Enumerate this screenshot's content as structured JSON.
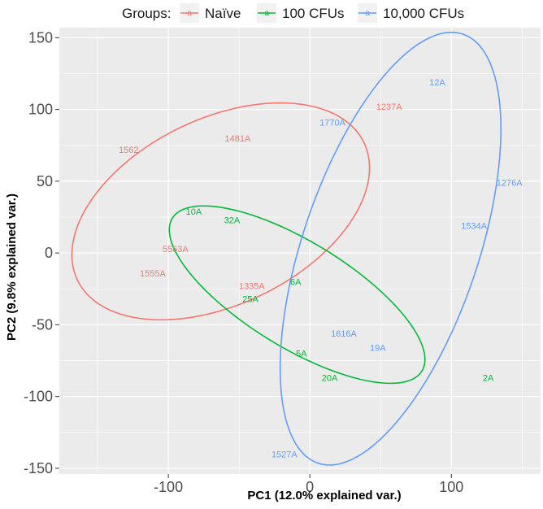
{
  "chart_data": {
    "type": "scatter",
    "title": "",
    "xlabel": "PC1 (12.0% explained var.)",
    "ylabel": "PC2 (9.8% explained var.)",
    "xlim": [
      -177,
      163
    ],
    "ylim": [
      -154,
      157
    ],
    "xticks": [
      -100,
      0,
      100
    ],
    "xtick_labels": [
      "-100",
      "0",
      "100"
    ],
    "yticks": [
      150,
      100,
      50,
      0,
      -50,
      -100,
      -150
    ],
    "ytick_labels": [
      "150",
      "100",
      "50",
      "0",
      "-50",
      "-100",
      "-150"
    ],
    "grid": true,
    "legend": {
      "title": "Groups:",
      "position": "top",
      "glyph": "a",
      "entries": [
        "Naïve",
        "100 CFUs",
        "10,000 CFUs"
      ]
    },
    "series": [
      {
        "name": "Naïve",
        "color": "#f8766d",
        "points": [
          {
            "label": "1562",
            "x": -128,
            "y": 72
          },
          {
            "label": "1481A",
            "x": -51,
            "y": 80
          },
          {
            "label": "1237A",
            "x": 56,
            "y": 102
          },
          {
            "label": "5563A",
            "x": -95,
            "y": 3
          },
          {
            "label": "1555A",
            "x": -111,
            "y": -14
          },
          {
            "label": "1335A",
            "x": -41,
            "y": -23
          }
        ],
        "ellipse": {
          "cx": -63,
          "cy": 29,
          "rx": 112,
          "ry": 65,
          "angle_deg": 25
        }
      },
      {
        "name": "100 CFUs",
        "color": "#00ba38",
        "points": [
          {
            "label": "10A",
            "x": -82,
            "y": 29
          },
          {
            "label": "32A",
            "x": -55,
            "y": 23
          },
          {
            "label": "6A",
            "x": -10,
            "y": -20
          },
          {
            "label": "25A",
            "x": -42,
            "y": -32
          },
          {
            "label": "5A",
            "x": -6,
            "y": -70
          },
          {
            "label": "20A",
            "x": 14,
            "y": -87
          },
          {
            "label": "2A",
            "x": 126,
            "y": -87
          }
        ],
        "ellipse": {
          "cx": -9,
          "cy": -29,
          "rx": 103,
          "ry": 37,
          "angle_deg": -31
        }
      },
      {
        "name": "10,000 CFUs",
        "color": "#619cff",
        "points": [
          {
            "label": "12A",
            "x": 90,
            "y": 119
          },
          {
            "label": "1770A",
            "x": 16,
            "y": 91
          },
          {
            "label": "1276A",
            "x": 141,
            "y": 49
          },
          {
            "label": "1534A",
            "x": 116,
            "y": 19
          },
          {
            "label": "1616A",
            "x": 24,
            "y": -56
          },
          {
            "label": "19A",
            "x": 48,
            "y": -66
          },
          {
            "label": "1527A",
            "x": -18,
            "y": -140
          }
        ],
        "ellipse": {
          "cx": 57,
          "cy": 3,
          "rx": 158,
          "ry": 62,
          "angle_deg": 71
        }
      }
    ]
  }
}
